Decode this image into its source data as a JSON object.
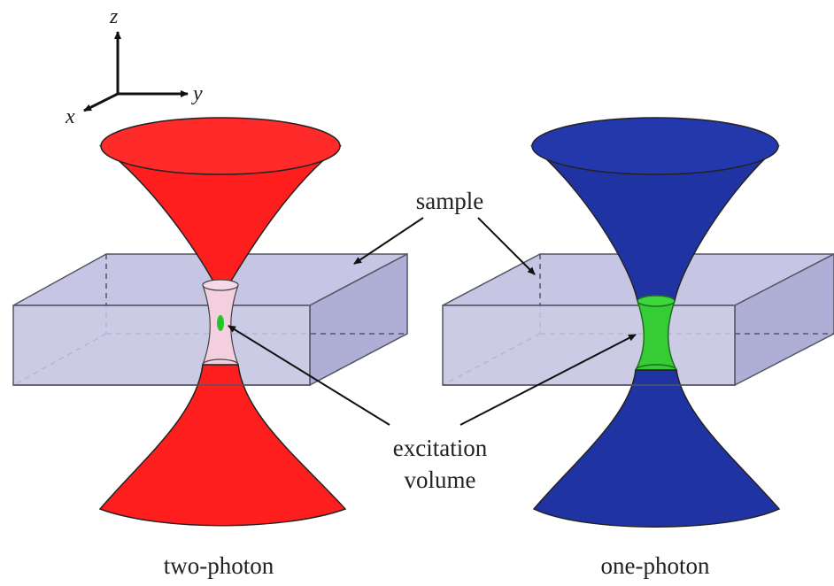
{
  "axes": {
    "x": "x",
    "y": "y",
    "z": "z"
  },
  "labels": {
    "sample": "sample",
    "excitation_line1": "excitation",
    "excitation_line2": "volume"
  },
  "panels": [
    {
      "id": "two-photon",
      "caption": "two-photon",
      "beam_color": "#ff1e1e",
      "excitation_color": "#25c42a"
    },
    {
      "id": "one-photon",
      "caption": "one-photon",
      "beam_color": "#2033a3",
      "excitation_color": "#35cc35"
    }
  ],
  "colors": {
    "sample_fill": "#b9b9dc",
    "sample_edge": "#555566",
    "focal_tint": "#f3cfe0"
  }
}
